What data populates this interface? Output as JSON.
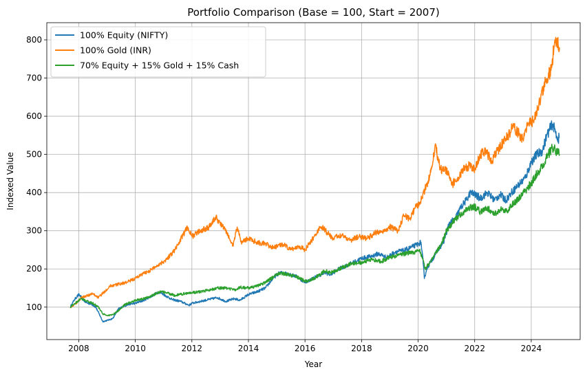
{
  "chart_data": {
    "type": "line",
    "title": "Portfolio Comparison (Base = 100, Start = 2007)",
    "xlabel": "Year",
    "ylabel": "Indexed Value",
    "xlim": [
      2006.87,
      2025.73
    ],
    "ylim": [
      15,
      845
    ],
    "xticks": [
      2008,
      2010,
      2012,
      2014,
      2016,
      2018,
      2020,
      2022,
      2024
    ],
    "yticks": [
      100,
      200,
      300,
      400,
      500,
      600,
      700,
      800
    ],
    "grid": true,
    "legend_position": "top-left",
    "series": [
      {
        "name": "100% Equity (NIFTY)",
        "color": "#1f77b4",
        "x": [
          2007.7,
          2007.85,
          2008.0,
          2008.1,
          2008.25,
          2008.45,
          2008.6,
          2008.75,
          2008.85,
          2009.0,
          2009.2,
          2009.4,
          2009.6,
          2009.8,
          2010.0,
          2010.3,
          2010.6,
          2010.85,
          2011.0,
          2011.3,
          2011.6,
          2011.9,
          2012.0,
          2012.3,
          2012.6,
          2012.9,
          2013.2,
          2013.5,
          2013.7,
          2014.0,
          2014.3,
          2014.6,
          2014.9,
          2015.1,
          2015.4,
          2015.7,
          2016.0,
          2016.15,
          2016.4,
          2016.7,
          2016.9,
          2017.2,
          2017.5,
          2017.8,
          2018.0,
          2018.3,
          2018.6,
          2018.9,
          2019.2,
          2019.5,
          2019.8,
          2020.0,
          2020.1,
          2020.18,
          2020.22,
          2020.3,
          2020.5,
          2020.7,
          2020.9,
          2021.1,
          2021.3,
          2021.5,
          2021.7,
          2021.85,
          2022.0,
          2022.2,
          2022.45,
          2022.7,
          2022.9,
          2023.1,
          2023.3,
          2023.55,
          2023.8,
          2024.0,
          2024.2,
          2024.4,
          2024.55,
          2024.75,
          2024.85,
          2024.95,
          2025.0
        ],
        "values": [
          100,
          120,
          133,
          125,
          112,
          108,
          100,
          78,
          62,
          65,
          70,
          95,
          103,
          108,
          110,
          118,
          130,
          140,
          133,
          120,
          115,
          105,
          110,
          115,
          120,
          125,
          115,
          122,
          118,
          133,
          140,
          150,
          178,
          190,
          188,
          180,
          165,
          170,
          180,
          190,
          185,
          200,
          210,
          220,
          228,
          232,
          240,
          230,
          245,
          248,
          258,
          265,
          270,
          215,
          175,
          200,
          225,
          250,
          270,
          320,
          330,
          360,
          380,
          400,
          395,
          385,
          400,
          380,
          395,
          380,
          400,
          420,
          440,
          480,
          500,
          510,
          550,
          580,
          560,
          540,
          545
        ]
      },
      {
        "name": "100% Gold (INR)",
        "color": "#ff7f0e",
        "x": [
          2007.7,
          2007.9,
          2008.1,
          2008.3,
          2008.5,
          2008.7,
          2008.9,
          2009.1,
          2009.4,
          2009.7,
          2010.0,
          2010.2,
          2010.5,
          2010.8,
          2011.1,
          2011.4,
          2011.7,
          2011.85,
          2012.0,
          2012.3,
          2012.6,
          2012.85,
          2013.0,
          2013.2,
          2013.45,
          2013.6,
          2013.75,
          2014.0,
          2014.3,
          2014.6,
          2014.9,
          2015.2,
          2015.5,
          2015.8,
          2016.0,
          2016.2,
          2016.45,
          2016.6,
          2016.85,
          2017.0,
          2017.3,
          2017.6,
          2017.9,
          2018.2,
          2018.5,
          2018.8,
          2019.0,
          2019.3,
          2019.5,
          2019.7,
          2019.9,
          2020.05,
          2020.2,
          2020.35,
          2020.5,
          2020.6,
          2020.8,
          2021.0,
          2021.2,
          2021.4,
          2021.6,
          2021.8,
          2022.0,
          2022.2,
          2022.4,
          2022.6,
          2022.8,
          2023.0,
          2023.2,
          2023.35,
          2023.5,
          2023.7,
          2023.9,
          2024.1,
          2024.3,
          2024.5,
          2024.7,
          2024.8,
          2024.9,
          2025.0
        ],
        "values": [
          100,
          110,
          125,
          130,
          135,
          125,
          140,
          155,
          160,
          165,
          175,
          185,
          195,
          210,
          225,
          250,
          290,
          310,
          285,
          300,
          310,
          335,
          320,
          300,
          260,
          310,
          270,
          280,
          270,
          265,
          255,
          265,
          250,
          260,
          250,
          270,
          300,
          310,
          290,
          280,
          290,
          275,
          285,
          280,
          295,
          300,
          310,
          300,
          340,
          330,
          360,
          370,
          400,
          430,
          470,
          525,
          460,
          460,
          420,
          440,
          460,
          470,
          460,
          500,
          510,
          480,
          510,
          530,
          550,
          575,
          560,
          540,
          580,
          590,
          640,
          690,
          720,
          780,
          800,
          780
        ]
      },
      {
        "name": "70% Equity + 15% Gold + 15% Cash",
        "color": "#2ca02c",
        "x": [
          2007.7,
          2007.9,
          2008.1,
          2008.3,
          2008.5,
          2008.7,
          2008.85,
          2009.0,
          2009.2,
          2009.4,
          2009.6,
          2009.8,
          2010.0,
          2010.3,
          2010.6,
          2010.85,
          2011.1,
          2011.4,
          2011.7,
          2012.0,
          2012.3,
          2012.6,
          2012.9,
          2013.2,
          2013.5,
          2013.7,
          2014.0,
          2014.3,
          2014.6,
          2014.9,
          2015.1,
          2015.4,
          2015.7,
          2016.0,
          2016.15,
          2016.4,
          2016.7,
          2016.9,
          2017.2,
          2017.5,
          2017.8,
          2018.1,
          2018.4,
          2018.7,
          2019.0,
          2019.3,
          2019.6,
          2019.9,
          2020.05,
          2020.18,
          2020.25,
          2020.4,
          2020.6,
          2020.8,
          2021.0,
          2021.2,
          2021.4,
          2021.6,
          2021.8,
          2022.0,
          2022.2,
          2022.45,
          2022.7,
          2022.9,
          2023.1,
          2023.3,
          2023.55,
          2023.8,
          2024.0,
          2024.2,
          2024.4,
          2024.6,
          2024.75,
          2024.85,
          2024.95,
          2025.0
        ],
        "values": [
          100,
          112,
          122,
          115,
          110,
          100,
          82,
          78,
          80,
          90,
          105,
          112,
          118,
          122,
          130,
          140,
          138,
          130,
          135,
          138,
          140,
          145,
          150,
          150,
          145,
          152,
          150,
          155,
          165,
          180,
          190,
          185,
          180,
          168,
          170,
          178,
          195,
          190,
          200,
          210,
          215,
          218,
          225,
          220,
          230,
          235,
          242,
          245,
          250,
          222,
          200,
          215,
          240,
          260,
          300,
          320,
          335,
          350,
          360,
          362,
          350,
          360,
          345,
          355,
          350,
          365,
          385,
          405,
          425,
          450,
          470,
          500,
          520,
          510,
          505,
          500
        ]
      }
    ]
  }
}
